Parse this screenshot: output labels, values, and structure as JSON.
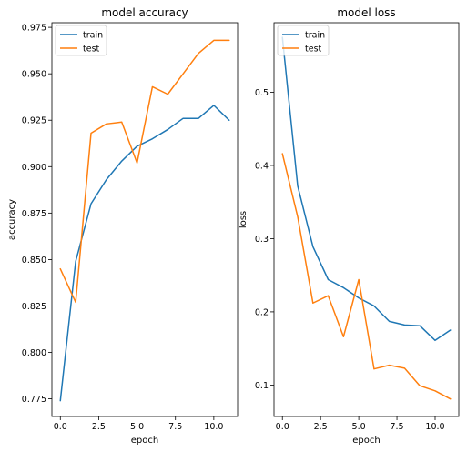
{
  "chart_data": [
    {
      "type": "line",
      "title": "model accuracy",
      "xlabel": "epoch",
      "ylabel": "accuracy",
      "xlim": [
        -0.55,
        11.55
      ],
      "ylim": [
        0.7655,
        0.9775
      ],
      "xticks": [
        0,
        2.5,
        5,
        7.5,
        10
      ],
      "xtick_labels": [
        "0.0",
        "2.5",
        "5.0",
        "7.5",
        "10.0"
      ],
      "yticks": [
        0.775,
        0.8,
        0.825,
        0.85,
        0.875,
        0.9,
        0.925,
        0.95,
        0.975
      ],
      "ytick_labels": [
        "0.775",
        "0.800",
        "0.825",
        "0.850",
        "0.875",
        "0.900",
        "0.925",
        "0.950",
        "0.975"
      ],
      "legend": "top-left",
      "grid": false,
      "x": [
        0,
        1,
        2,
        3,
        4,
        5,
        6,
        7,
        8,
        9,
        10,
        11
      ],
      "series": [
        {
          "name": "train",
          "color": "#1f77b4",
          "values": [
            0.774,
            0.849,
            0.88,
            0.893,
            0.903,
            0.911,
            0.915,
            0.92,
            0.926,
            0.926,
            0.933,
            0.925
          ]
        },
        {
          "name": "test",
          "color": "#ff7f0e",
          "values": [
            0.845,
            0.827,
            0.918,
            0.923,
            0.924,
            0.902,
            0.943,
            0.939,
            0.95,
            0.961,
            0.968,
            0.968
          ]
        }
      ]
    },
    {
      "type": "line",
      "title": "model loss",
      "xlabel": "epoch",
      "ylabel": "loss",
      "xlim": [
        -0.55,
        11.55
      ],
      "ylim": [
        0.057,
        0.595
      ],
      "xticks": [
        0,
        2.5,
        5,
        7.5,
        10
      ],
      "xtick_labels": [
        "0.0",
        "2.5",
        "5.0",
        "7.5",
        "10.0"
      ],
      "yticks": [
        0.1,
        0.2,
        0.3,
        0.4,
        0.5
      ],
      "ytick_labels": [
        "0.1",
        "0.2",
        "0.3",
        "0.4",
        "0.5"
      ],
      "legend": "top-left",
      "grid": false,
      "x": [
        0,
        1,
        2,
        3,
        4,
        5,
        6,
        7,
        8,
        9,
        10,
        11
      ],
      "series": [
        {
          "name": "train",
          "color": "#1f77b4",
          "values": [
            0.575,
            0.372,
            0.289,
            0.244,
            0.233,
            0.219,
            0.208,
            0.187,
            0.182,
            0.181,
            0.161,
            0.175
          ]
        },
        {
          "name": "test",
          "color": "#ff7f0e",
          "values": [
            0.416,
            0.33,
            0.212,
            0.222,
            0.166,
            0.244,
            0.122,
            0.127,
            0.123,
            0.099,
            0.092,
            0.081
          ]
        }
      ]
    }
  ]
}
